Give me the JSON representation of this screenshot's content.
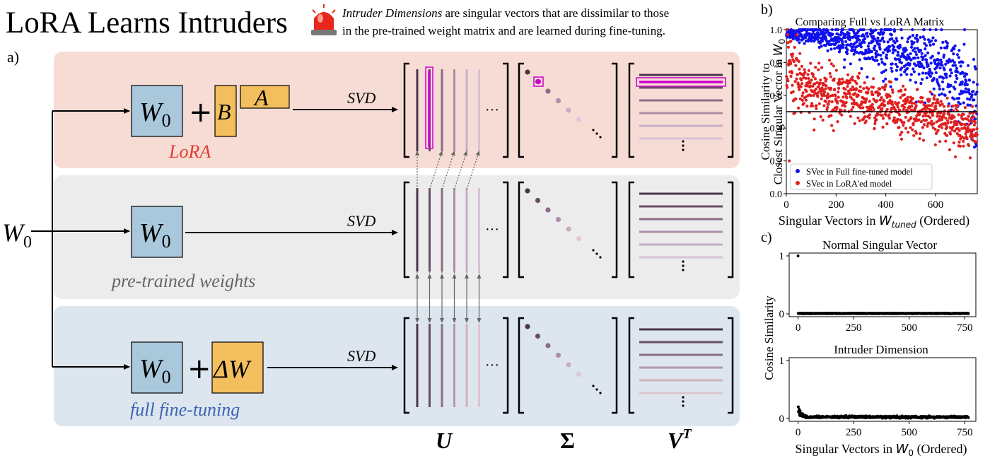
{
  "title": "LoRA Learns Intruders",
  "subtitle": {
    "italic": "Intruder Dimensions",
    "line1_rest": " are singular vectors that are dissimilar to those",
    "line2": "in the pre-trained weight matrix and are learned during fine-tuning."
  },
  "panel_labels": {
    "a": "a)",
    "b": "b)",
    "c": "c)"
  },
  "colors": {
    "lora_bg": "#f7dcd6",
    "pretrained_bg": "#ececec",
    "fullft_bg": "#dde6ef",
    "w0_box": "#a9c8dc",
    "ab_box": "#f3bf5e",
    "intruder": "#cc00cc",
    "lora_text": "#e03c2c",
    "gray_text": "#666666",
    "ft_text": "#3a64b0",
    "blue_series": "#1010ee",
    "red_series": "#e02020"
  },
  "diagram": {
    "input_label": "W",
    "input_sub": "0",
    "rows": [
      {
        "id": "lora",
        "caption": "LoRA",
        "terms": [
          "W0",
          "+",
          "B",
          "A"
        ],
        "svd_label": "SVD"
      },
      {
        "id": "pretrained",
        "caption": "pre-trained weights",
        "terms": [
          "W0"
        ],
        "svd_label": "SVD"
      },
      {
        "id": "fullft",
        "caption": "full fine-tuning",
        "terms": [
          "W0",
          "+",
          "ΔW"
        ],
        "svd_label": "SVD"
      }
    ],
    "w_letter": "W",
    "w_sub": "0",
    "plus": "+",
    "b_label": "B",
    "a_label": "A",
    "delta_label": "ΔW",
    "ellipsis": "···",
    "matrix_labels": {
      "u": "U",
      "sigma": "Σ",
      "vt": "V",
      "vt_sup": "T"
    }
  },
  "chart_data": [
    {
      "type": "scatter",
      "title": "Comparing Full vs LoRA Matrix",
      "ylabel_line1": "Cosine Similarity to",
      "ylabel_line2_prefix": "Closest Singular Vector in ",
      "ylabel_sym": "W",
      "ylabel_sub": "0",
      "xlabel_prefix": "Singular Vectors in ",
      "xlabel_sym": "W",
      "xlabel_sub": "tuned",
      "xlabel_suffix": " (Ordered)",
      "xlim": [
        0,
        768
      ],
      "ylim": [
        0,
        1
      ],
      "xticks": [
        0,
        200,
        400,
        600
      ],
      "yticks": [
        "0.0",
        "0.2",
        "0.4",
        "0.6",
        "0.8",
        "1.0"
      ],
      "reference_line_y": 0.5,
      "legend_position": "lower-left",
      "series": [
        {
          "name": "SVec in Full fine-tuned model",
          "color": "#1010ee",
          "n": 768,
          "trend": [
            [
              0,
              0.98
            ],
            [
              150,
              0.96
            ],
            [
              300,
              0.91
            ],
            [
              450,
              0.85
            ],
            [
              600,
              0.79
            ],
            [
              700,
              0.7
            ],
            [
              768,
              0.5
            ]
          ],
          "spread": [
            [
              0,
              0.015
            ],
            [
              200,
              0.04
            ],
            [
              400,
              0.08
            ],
            [
              600,
              0.1
            ],
            [
              768,
              0.12
            ]
          ]
        },
        {
          "name": "SVec in LoRA'ed model",
          "color": "#e02020",
          "n": 768,
          "trend": [
            [
              0,
              0.78
            ],
            [
              50,
              0.68
            ],
            [
              150,
              0.62
            ],
            [
              300,
              0.56
            ],
            [
              500,
              0.5
            ],
            [
              650,
              0.45
            ],
            [
              768,
              0.38
            ]
          ],
          "spread": [
            [
              0,
              0.12
            ],
            [
              100,
              0.09
            ],
            [
              400,
              0.07
            ],
            [
              768,
              0.06
            ]
          ],
          "outliers": [
            [
              12,
              0.2
            ],
            [
              6,
              0.97
            ],
            [
              18,
              0.93
            ]
          ]
        }
      ]
    },
    {
      "type": "scatter",
      "title": "Normal Singular Vector",
      "xlim": [
        -40,
        800
      ],
      "ylim": [
        0,
        1
      ],
      "xticks": [
        0,
        250,
        500,
        750
      ],
      "yticks": [
        "0",
        "1"
      ],
      "spike": [
        0,
        1.0
      ],
      "baseline_max": 0.015,
      "n": 768
    },
    {
      "type": "scatter",
      "title": "Intruder Dimension",
      "xlim": [
        -40,
        800
      ],
      "ylim": [
        0,
        1
      ],
      "xticks": [
        0,
        250,
        500,
        750
      ],
      "yticks": [
        "0",
        "1"
      ],
      "peak_near_zero": 0.2,
      "typical": 0.03,
      "n": 768,
      "xlabel_prefix": "Singular Vectors in ",
      "xlabel_sym": "W",
      "xlabel_sub": "0",
      "xlabel_suffix": " (Ordered)"
    }
  ],
  "shared_ylabel_c": "Cosine Similarity"
}
